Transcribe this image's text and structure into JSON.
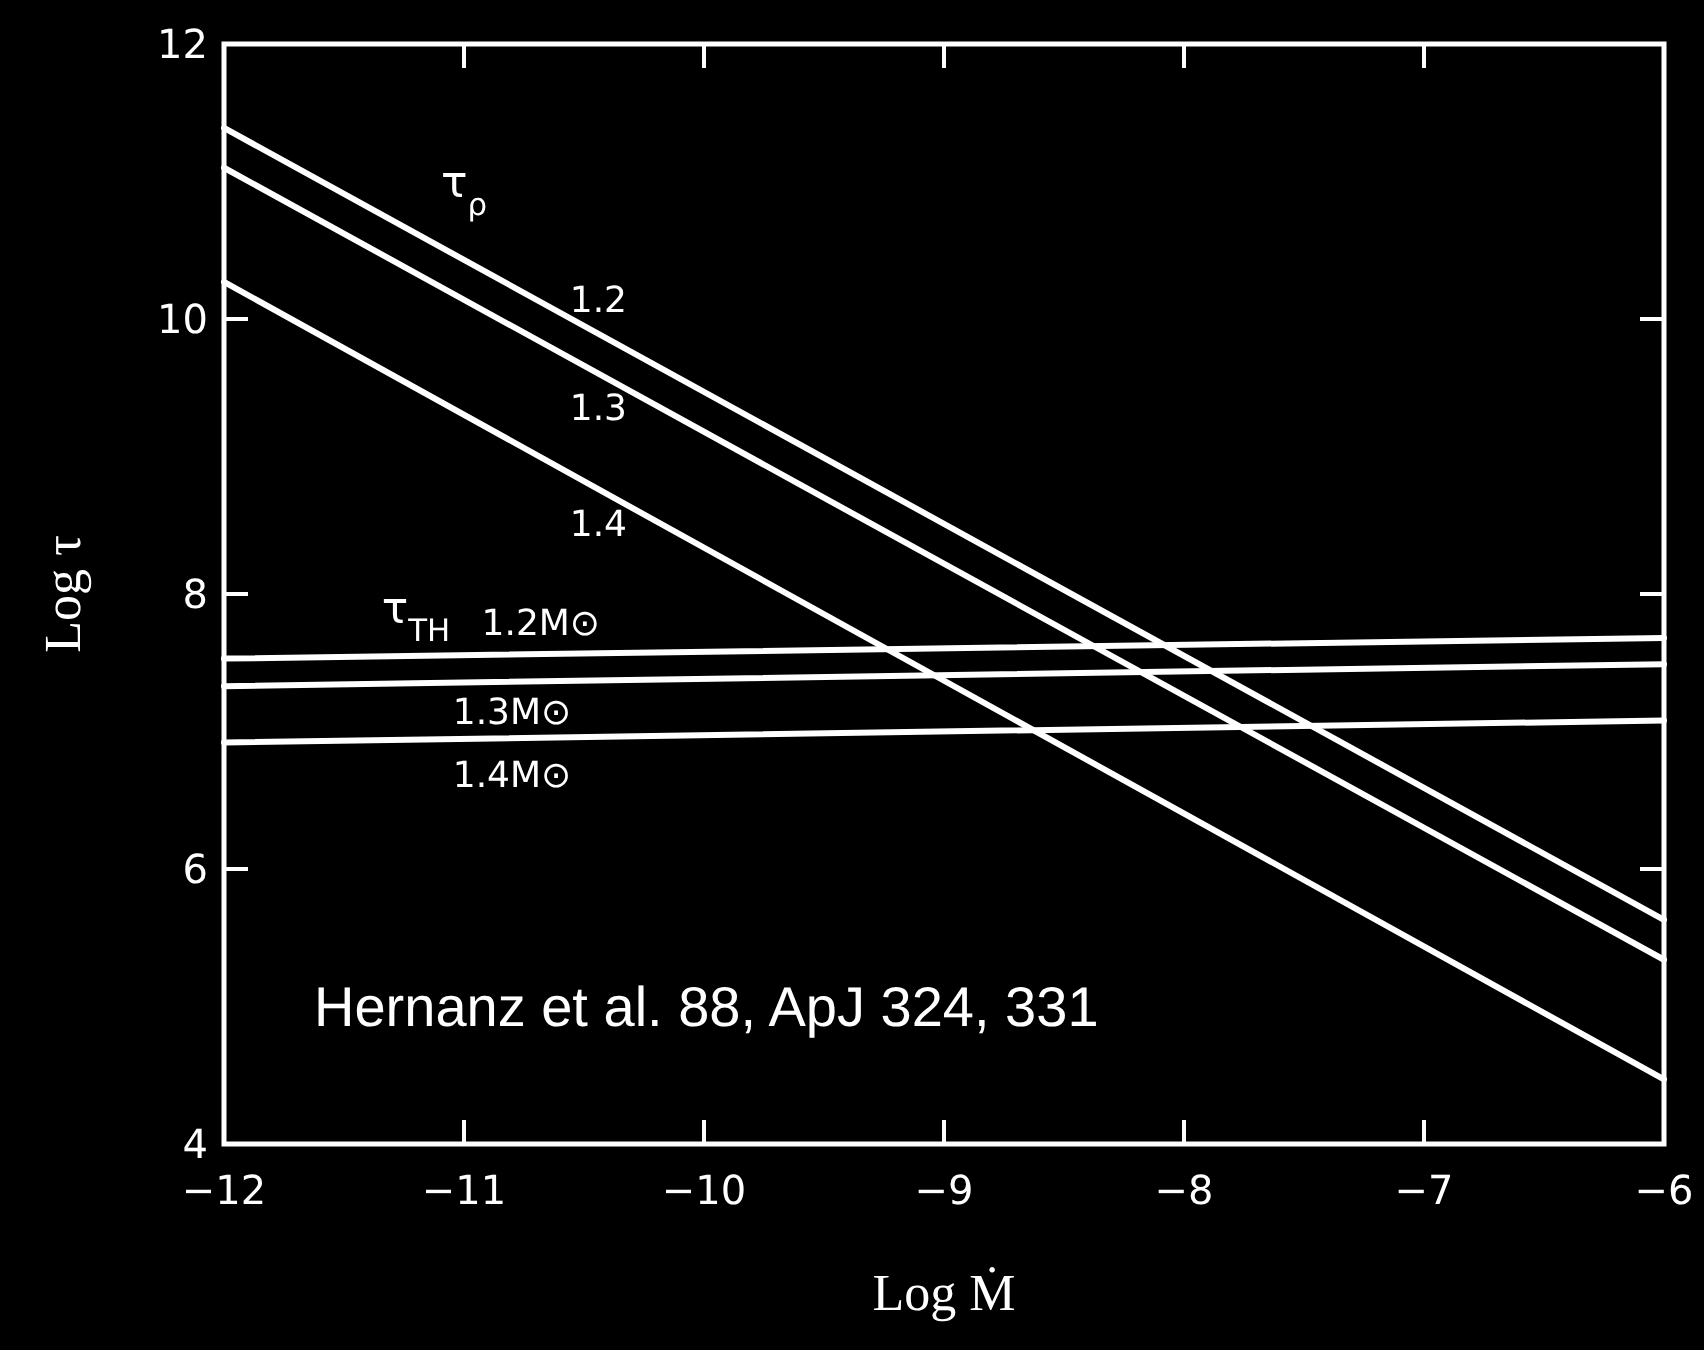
{
  "chart_data": {
    "type": "line",
    "xlabel": "Log Ṁ",
    "ylabel": "Log τ",
    "xlim": [
      -12,
      -6
    ],
    "ylim": [
      4,
      12
    ],
    "xticks": [
      -12,
      -11,
      -10,
      -9,
      -8,
      -7,
      -6
    ],
    "yticks": [
      4,
      6,
      8,
      10,
      12
    ],
    "grid": false,
    "marker": "none",
    "line_style": "solid",
    "x": [
      -12,
      -6
    ],
    "series": [
      {
        "name": "1.2",
        "color": "#ffffff",
        "values": [
          11.39,
          5.63
        ]
      },
      {
        "name": "1.3",
        "color": "#ffffff",
        "values": [
          11.1,
          5.34
        ]
      },
      {
        "name": "1.4",
        "color": "#ffffff",
        "values": [
          10.27,
          4.47
        ]
      },
      {
        "name": "1.2M⊙",
        "color": "#ffffff",
        "values": [
          7.53,
          7.68
        ]
      },
      {
        "name": "1.3M⊙",
        "color": "#ffffff",
        "values": [
          7.33,
          7.49
        ]
      },
      {
        "name": "1.4M⊙",
        "color": "#ffffff",
        "values": [
          6.92,
          7.08
        ]
      }
    ],
    "annotations": [
      "τ$_{ρ}$",
      "τ$_{TH}$",
      "Hernanz et al. 88, ApJ 324, 331"
    ]
  }
}
